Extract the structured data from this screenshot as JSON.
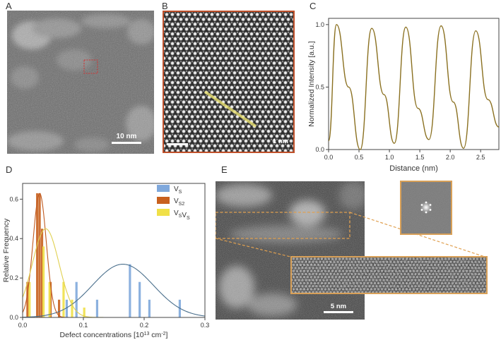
{
  "panels": {
    "a": {
      "label": "A",
      "scale_text": "10 nm"
    },
    "b": {
      "label": "B",
      "scale_text": "1 nm"
    },
    "c": {
      "label": "C"
    },
    "d": {
      "label": "D"
    },
    "e": {
      "label": "E",
      "scale_text": "5 nm"
    }
  },
  "colors": {
    "profile_line": "#8a7020",
    "highlight_box": "#e0a050",
    "panel_b_border": "#c0502a",
    "vs_blue": "#7fa8dc",
    "vs2_orange": "#c8601e",
    "vsvs_yellow": "#f0e048",
    "fit_blue": "#4a6f8c",
    "fit_orange": "#c05a20",
    "fit_yellow": "#e0d050"
  },
  "chart_data": [
    {
      "type": "line",
      "panel": "C",
      "xlabel": "Distance (nm)",
      "ylabel": "Normalized Intensity [a.u.]",
      "xlim": [
        0,
        2.8
      ],
      "ylim": [
        0,
        1.05
      ],
      "x_ticks": [
        "0.0",
        "0.5",
        "1.0",
        "1.5",
        "2.0",
        "2.5"
      ],
      "y_ticks": [
        "0.0",
        "0.5",
        "1.0"
      ],
      "peaks": [
        {
          "x": 0.13,
          "y": 1.0
        },
        {
          "x": 0.33,
          "y": 0.5
        },
        {
          "x": 0.71,
          "y": 0.97
        },
        {
          "x": 0.91,
          "y": 0.44
        },
        {
          "x": 1.27,
          "y": 0.98
        },
        {
          "x": 1.47,
          "y": 0.33
        },
        {
          "x": 1.85,
          "y": 0.99
        },
        {
          "x": 2.05,
          "y": 0.38
        },
        {
          "x": 2.42,
          "y": 0.95
        },
        {
          "x": 2.62,
          "y": 0.4
        }
      ],
      "minima": [
        {
          "x": 0.0,
          "y": 0.07
        },
        {
          "x": 0.52,
          "y": 0.0
        },
        {
          "x": 1.08,
          "y": 0.05
        },
        {
          "x": 1.65,
          "y": 0.08
        },
        {
          "x": 2.22,
          "y": 0.01
        },
        {
          "x": 2.8,
          "y": 0.18
        }
      ]
    },
    {
      "type": "bar",
      "panel": "D",
      "xlabel": "Defect concentrations [10",
      "xlabel_sup1": "13",
      "xlabel_mid": " cm",
      "xlabel_sup2": "-2",
      "xlabel_end": "]",
      "ylabel": "Relative Frequency",
      "xlim": [
        0,
        0.3
      ],
      "ylim": [
        0,
        0.68
      ],
      "x_ticks": [
        "0.0",
        "0.1",
        "0.2",
        "0.3"
      ],
      "y_ticks": [
        "0.0",
        "0.2",
        "0.4",
        "0.6"
      ],
      "legend": {
        "position": "top-right"
      },
      "series": [
        {
          "name": "V",
          "sub": "S",
          "color": "#7fa8dc",
          "bars": [
            {
              "x": 0.074,
              "y": 0.09
            },
            {
              "x": 0.09,
              "y": 0.18
            },
            {
              "x": 0.124,
              "y": 0.09
            },
            {
              "x": 0.178,
              "y": 0.27
            },
            {
              "x": 0.194,
              "y": 0.18
            },
            {
              "x": 0.21,
              "y": 0.09
            },
            {
              "x": 0.26,
              "y": 0.09
            }
          ],
          "fit": {
            "mean": 0.165,
            "sd": 0.05,
            "peak": 0.27
          }
        },
        {
          "name": "V",
          "sub": "S2",
          "color": "#c8601e",
          "bars": [
            {
              "x": 0.008,
              "y": 0.18
            },
            {
              "x": 0.024,
              "y": 0.63
            },
            {
              "x": 0.028,
              "y": 0.63
            },
            {
              "x": 0.032,
              "y": 0.45
            },
            {
              "x": 0.046,
              "y": 0.18
            },
            {
              "x": 0.06,
              "y": 0.09
            }
          ],
          "fit": {
            "mean": 0.028,
            "sd": 0.011,
            "peak": 0.63
          }
        },
        {
          "name": "V",
          "sub": "S",
          "name2": "V",
          "sub2": "S",
          "color": "#f0e048",
          "bars": [
            {
              "x": 0.01,
              "y": 0.18
            },
            {
              "x": 0.033,
              "y": 0.36
            },
            {
              "x": 0.043,
              "y": 0.18
            },
            {
              "x": 0.066,
              "y": 0.18
            },
            {
              "x": 0.08,
              "y": 0.09
            },
            {
              "x": 0.1,
              "y": 0.05
            }
          ],
          "fit": {
            "mean": 0.038,
            "sd": 0.022,
            "peak": 0.45
          }
        }
      ]
    }
  ]
}
